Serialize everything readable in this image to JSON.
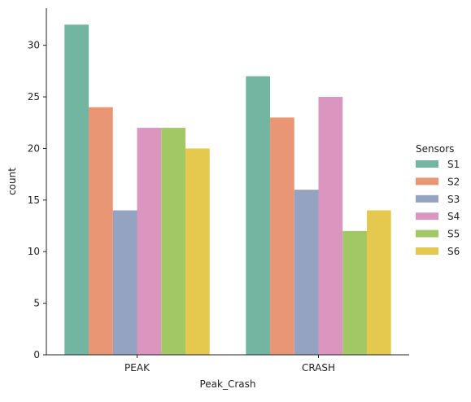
{
  "chart_data": {
    "type": "bar",
    "categories": [
      "PEAK",
      "CRASH"
    ],
    "series": [
      {
        "name": "S1",
        "values": [
          32,
          27
        ],
        "color": "#72b6a1"
      },
      {
        "name": "S2",
        "values": [
          24,
          23
        ],
        "color": "#e99675"
      },
      {
        "name": "S3",
        "values": [
          14,
          16
        ],
        "color": "#95a3c3"
      },
      {
        "name": "S4",
        "values": [
          22,
          25
        ],
        "color": "#db96c0"
      },
      {
        "name": "S5",
        "values": [
          22,
          12
        ],
        "color": "#a2c865"
      },
      {
        "name": "S6",
        "values": [
          20,
          14
        ],
        "color": "#e5c84e"
      }
    ],
    "xlabel": "Peak_Crash",
    "ylabel": "count",
    "ylim": [
      0,
      33.6
    ],
    "yticks": [
      0,
      5,
      10,
      15,
      20,
      25,
      30
    ],
    "grid": false,
    "legend": {
      "title": "Sensors",
      "placement": "right"
    }
  }
}
